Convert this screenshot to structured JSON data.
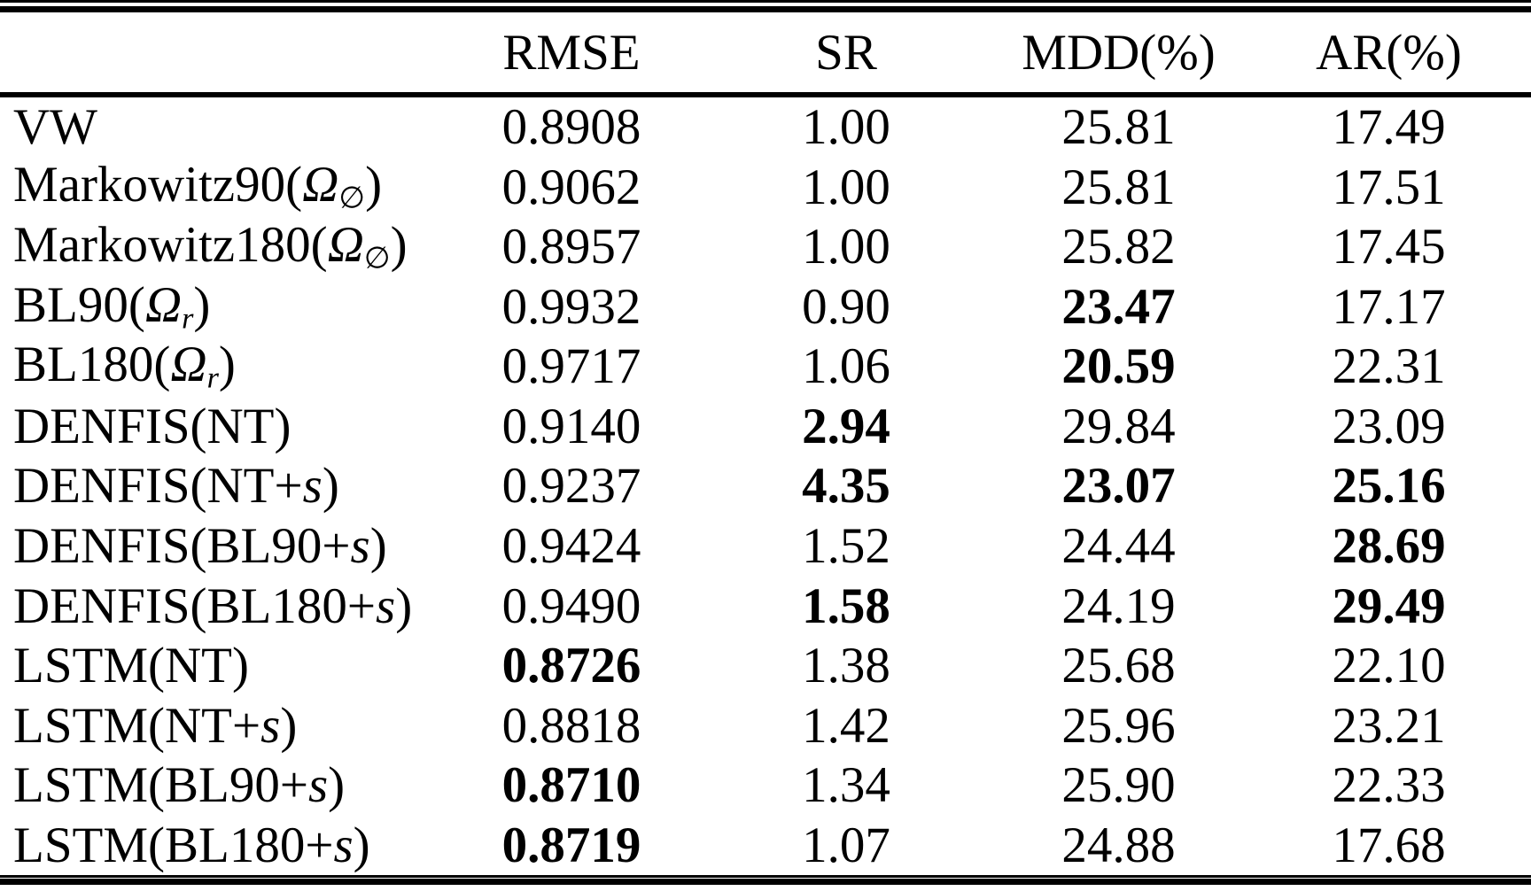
{
  "table": {
    "columns": [
      "",
      "RMSE",
      "SR",
      "MDD(%)",
      "AR(%)"
    ],
    "rows": [
      {
        "label_parts": [
          {
            "t": "VW"
          }
        ],
        "values": [
          {
            "v": "0.8908",
            "b": false
          },
          {
            "v": "1.00",
            "b": false
          },
          {
            "v": "25.81",
            "b": false
          },
          {
            "v": "17.49",
            "b": false
          }
        ]
      },
      {
        "label_parts": [
          {
            "t": "Markowitz90("
          },
          {
            "t": "Ω",
            "i": true
          },
          {
            "t": "∅",
            "s": true
          },
          {
            "t": ")"
          }
        ],
        "values": [
          {
            "v": "0.9062",
            "b": false
          },
          {
            "v": "1.00",
            "b": false
          },
          {
            "v": "25.81",
            "b": false
          },
          {
            "v": "17.51",
            "b": false
          }
        ]
      },
      {
        "label_parts": [
          {
            "t": "Markowitz180("
          },
          {
            "t": "Ω",
            "i": true
          },
          {
            "t": "∅",
            "s": true
          },
          {
            "t": ")"
          }
        ],
        "values": [
          {
            "v": "0.8957",
            "b": false
          },
          {
            "v": "1.00",
            "b": false
          },
          {
            "v": "25.82",
            "b": false
          },
          {
            "v": "17.45",
            "b": false
          }
        ]
      },
      {
        "label_parts": [
          {
            "t": "BL90("
          },
          {
            "t": "Ω",
            "i": true
          },
          {
            "t": "r",
            "s": true,
            "i": true
          },
          {
            "t": ")"
          }
        ],
        "values": [
          {
            "v": "0.9932",
            "b": false
          },
          {
            "v": "0.90",
            "b": false
          },
          {
            "v": "23.47",
            "b": true
          },
          {
            "v": "17.17",
            "b": false
          }
        ]
      },
      {
        "label_parts": [
          {
            "t": "BL180("
          },
          {
            "t": "Ω",
            "i": true
          },
          {
            "t": "r",
            "s": true,
            "i": true
          },
          {
            "t": ")"
          }
        ],
        "values": [
          {
            "v": "0.9717",
            "b": false
          },
          {
            "v": "1.06",
            "b": false
          },
          {
            "v": "20.59",
            "b": true
          },
          {
            "v": "22.31",
            "b": false
          }
        ]
      },
      {
        "label_parts": [
          {
            "t": "DENFIS(NT)"
          }
        ],
        "values": [
          {
            "v": "0.9140",
            "b": false
          },
          {
            "v": "2.94",
            "b": true
          },
          {
            "v": "29.84",
            "b": false
          },
          {
            "v": "23.09",
            "b": false
          }
        ]
      },
      {
        "label_parts": [
          {
            "t": "DENFIS(NT+"
          },
          {
            "t": "s",
            "i": true
          },
          {
            "t": ")"
          }
        ],
        "values": [
          {
            "v": "0.9237",
            "b": false
          },
          {
            "v": "4.35",
            "b": true
          },
          {
            "v": "23.07",
            "b": true
          },
          {
            "v": "25.16",
            "b": true
          }
        ]
      },
      {
        "label_parts": [
          {
            "t": "DENFIS(BL90+"
          },
          {
            "t": "s",
            "i": true
          },
          {
            "t": ")"
          }
        ],
        "values": [
          {
            "v": "0.9424",
            "b": false
          },
          {
            "v": "1.52",
            "b": false
          },
          {
            "v": "24.44",
            "b": false
          },
          {
            "v": "28.69",
            "b": true
          }
        ]
      },
      {
        "label_parts": [
          {
            "t": "DENFIS(BL180+"
          },
          {
            "t": "s",
            "i": true
          },
          {
            "t": ")"
          }
        ],
        "values": [
          {
            "v": "0.9490",
            "b": false
          },
          {
            "v": "1.58",
            "b": true
          },
          {
            "v": "24.19",
            "b": false
          },
          {
            "v": "29.49",
            "b": true
          }
        ]
      },
      {
        "label_parts": [
          {
            "t": "LSTM(NT)"
          }
        ],
        "values": [
          {
            "v": "0.8726",
            "b": true
          },
          {
            "v": "1.38",
            "b": false
          },
          {
            "v": "25.68",
            "b": false
          },
          {
            "v": "22.10",
            "b": false
          }
        ]
      },
      {
        "label_parts": [
          {
            "t": "LSTM(NT+"
          },
          {
            "t": "s",
            "i": true
          },
          {
            "t": ")"
          }
        ],
        "values": [
          {
            "v": "0.8818",
            "b": false
          },
          {
            "v": "1.42",
            "b": false
          },
          {
            "v": "25.96",
            "b": false
          },
          {
            "v": "23.21",
            "b": false
          }
        ]
      },
      {
        "label_parts": [
          {
            "t": "LSTM(BL90+"
          },
          {
            "t": "s",
            "i": true
          },
          {
            "t": ")"
          }
        ],
        "values": [
          {
            "v": "0.8710",
            "b": true
          },
          {
            "v": "1.34",
            "b": false
          },
          {
            "v": "25.90",
            "b": false
          },
          {
            "v": "22.33",
            "b": false
          }
        ]
      },
      {
        "label_parts": [
          {
            "t": "LSTM(BL180+"
          },
          {
            "t": "s",
            "i": true
          },
          {
            "t": ")"
          }
        ],
        "values": [
          {
            "v": "0.8719",
            "b": true
          },
          {
            "v": "1.07",
            "b": false
          },
          {
            "v": "24.88",
            "b": false
          },
          {
            "v": "17.68",
            "b": false
          }
        ]
      }
    ]
  },
  "colors": {
    "text": "#000000",
    "background": "#ffffff",
    "rule": "#000000"
  }
}
